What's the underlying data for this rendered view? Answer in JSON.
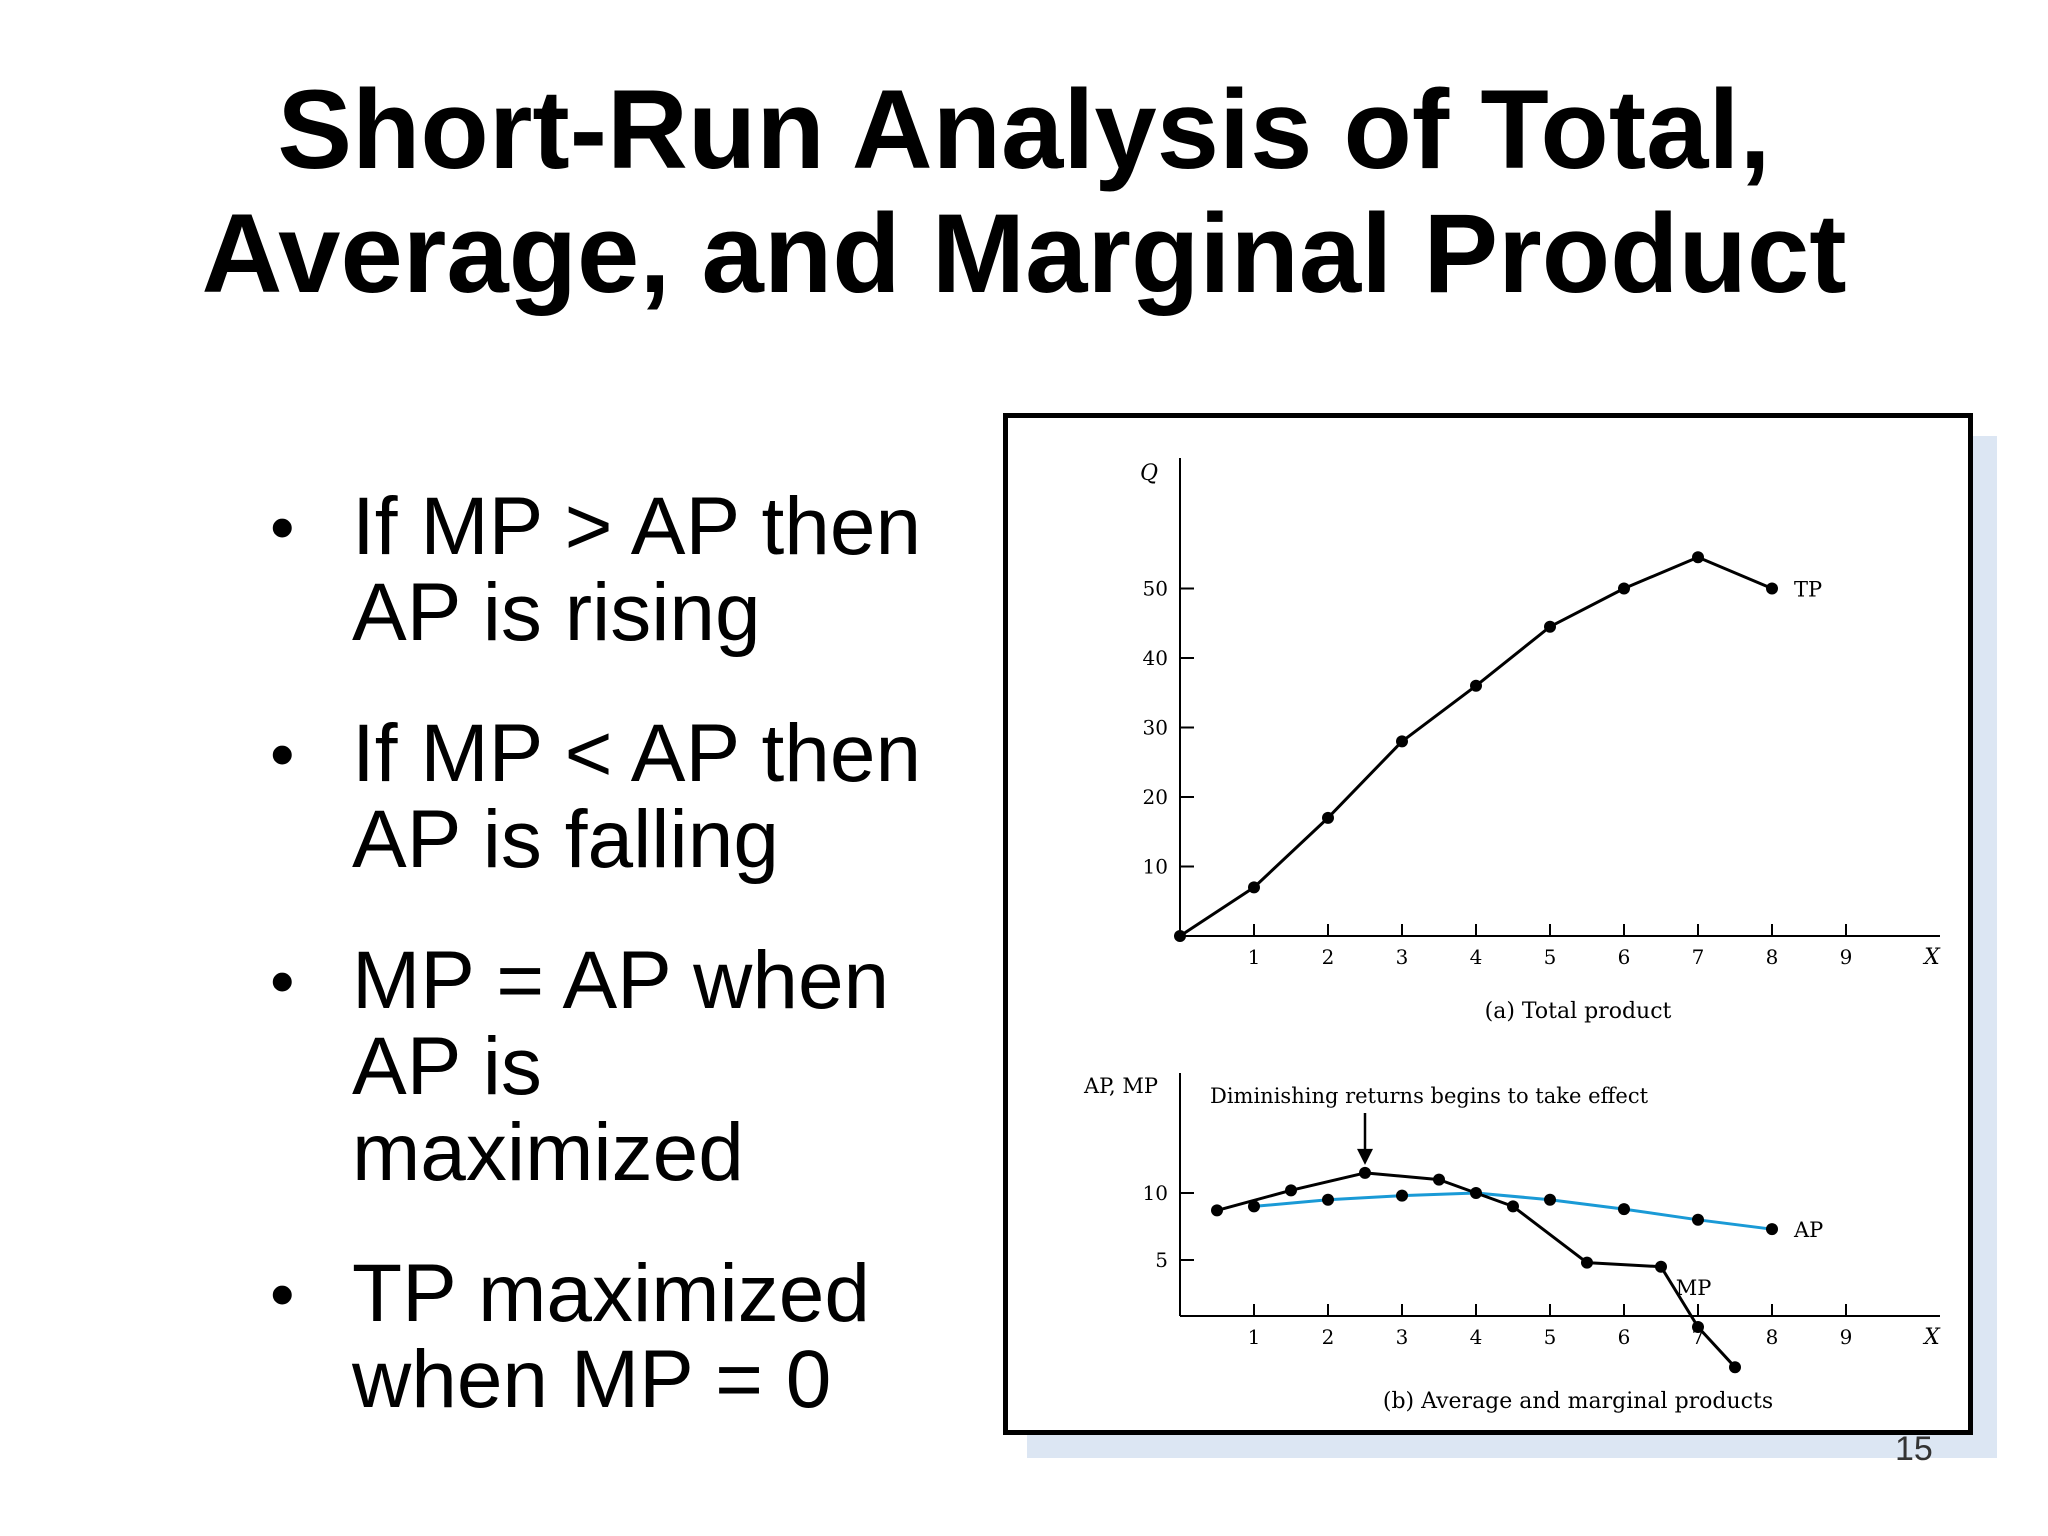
{
  "slide": {
    "title_line1": "Short-Run Analysis of Total,",
    "title_line2": "Average, and Marginal Product",
    "bullets": [
      "If MP > AP then AP is rising",
      "If MP < AP then AP is falling",
      "MP = AP when AP is maximized",
      "TP maximized when MP = 0"
    ],
    "page_number": "15"
  },
  "chart_data": [
    {
      "type": "line",
      "title": "",
      "caption": "(a) Total product",
      "xlabel": "X",
      "ylabel": "Q",
      "xlim": [
        0,
        10
      ],
      "ylim": [
        0,
        65
      ],
      "x_ticks": [
        1,
        2,
        3,
        4,
        5,
        6,
        7,
        8,
        9
      ],
      "y_ticks": [
        10,
        20,
        30,
        40,
        50
      ],
      "grid": false,
      "series": [
        {
          "name": "TP",
          "color": "#000000",
          "x": [
            0,
            1,
            2,
            3,
            4,
            5,
            6,
            7,
            8
          ],
          "y": [
            0,
            7,
            17,
            28,
            36,
            44.5,
            50,
            54.5,
            50
          ]
        }
      ]
    },
    {
      "type": "line",
      "title": "",
      "caption": "(b) Average and marginal products",
      "xlabel": "X",
      "ylabel": "AP, MP",
      "xlim": [
        0,
        10
      ],
      "ylim": [
        -3,
        17
      ],
      "x_ticks": [
        1,
        2,
        3,
        4,
        5,
        6,
        7,
        8,
        9
      ],
      "y_ticks": [
        5,
        10
      ],
      "grid": false,
      "annotation": "Diminishing returns begins to take effect",
      "annotation_x": 2.5,
      "series": [
        {
          "name": "AP",
          "color": "#1a9ad6",
          "x": [
            1,
            2,
            3,
            4,
            5,
            6,
            7,
            8
          ],
          "y": [
            9,
            9.5,
            9.8,
            10,
            9.5,
            8.8,
            8,
            7.3
          ]
        },
        {
          "name": "MP",
          "color": "#000000",
          "x": [
            0.5,
            1.5,
            2.5,
            3.5,
            4.5,
            5.5,
            6.5,
            7.0,
            7.5
          ],
          "y": [
            8.7,
            10.2,
            11.5,
            11,
            9,
            4.8,
            4.5,
            0,
            -3
          ]
        }
      ]
    }
  ]
}
